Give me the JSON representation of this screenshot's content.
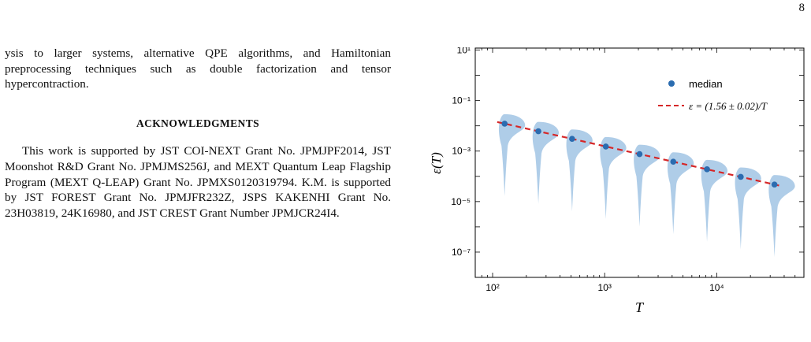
{
  "page": {
    "number": "8"
  },
  "left_column": {
    "continuation": "ysis to larger systems, alternative QPE algorithms, and Hamiltonian preprocessing techniques such as double factorization and tensor hypercontraction.",
    "acknowledgments_heading": "ACKNOWLEDGMENTS",
    "acknowledgments_text": "This work is supported by JST COI-NEXT Grant No. JPMJPF2014, JST Moonshot R&D Grant No. JPMJMS256J, and MEXT Quantum Leap Flagship Program (MEXT Q-LEAP) Grant No. JPMXS0120319794. K.M. is supported by JST FOREST Grant No. JPMJFR232Z, JSPS KAKENHI Grant No. 23H03819, 24K16980, and JST CREST Grant Number JPMJCR24I4."
  },
  "chart_data": {
    "type": "scatter",
    "xlabel": "T",
    "ylabel": "ε(T)",
    "x_scale": "log",
    "y_scale": "log",
    "xlim": [
      70,
      60000
    ],
    "ylim": [
      1e-08,
      12
    ],
    "x_ticks": [
      100,
      1000,
      10000
    ],
    "x_tick_labels": [
      "10²",
      "10³",
      "10⁴"
    ],
    "y_ticks": [
      10,
      0.1,
      0.001,
      1e-05,
      1e-07
    ],
    "y_tick_labels": [
      "10¹",
      "10⁻¹",
      "10⁻³",
      "10⁻⁵",
      "10⁻⁷"
    ],
    "legend_position": "top-right",
    "series": [
      {
        "name": "median",
        "kind": "points",
        "color": "#2b6cb0",
        "x": [
          128,
          256,
          512,
          1024,
          2048,
          4096,
          8192,
          16384,
          32768
        ],
        "y": [
          0.0122,
          0.0061,
          0.00305,
          0.00152,
          0.00076,
          0.00038,
          0.00019,
          9.52e-05,
          4.76e-05
        ]
      },
      {
        "name": "ε = (1.56 ± 0.02)/T",
        "kind": "fit-line",
        "color": "#d62728",
        "coefficient": 1.56
      }
    ],
    "violins": {
      "color": "#a6c8e6",
      "x": [
        128,
        256,
        512,
        1024,
        2048,
        4096,
        8192,
        16384,
        32768
      ]
    }
  }
}
